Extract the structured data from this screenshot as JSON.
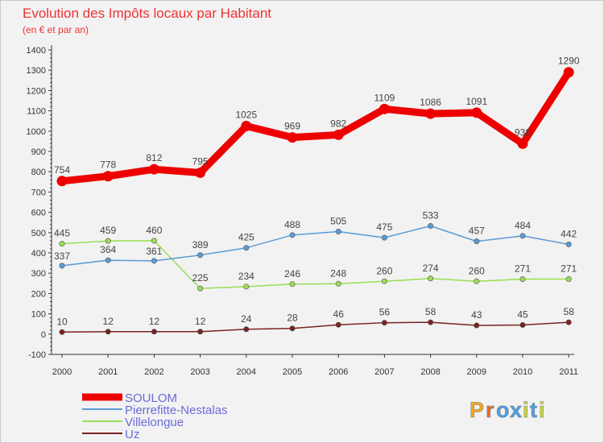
{
  "chart_data": {
    "type": "line",
    "title": "Evolution des Impôts locaux par Habitant",
    "subtitle": "(en € et par an)",
    "xlabel": "",
    "ylabel": "",
    "ylim": [
      -100,
      1400
    ],
    "yticks": [
      "1400",
      "1300",
      "1200",
      "1100",
      "1000",
      "900",
      "800",
      "700",
      "600",
      "500",
      "400",
      "300",
      "200",
      "100",
      "0",
      "-100"
    ],
    "ytick_values": [
      1400,
      1300,
      1200,
      1100,
      1000,
      900,
      800,
      700,
      600,
      500,
      400,
      300,
      200,
      100,
      0,
      -100
    ],
    "categories": [
      "2000",
      "2001",
      "2002",
      "2003",
      "2004",
      "2005",
      "2006",
      "2007",
      "2008",
      "2009",
      "2010",
      "2011"
    ],
    "grid": false,
    "legend_position": "bottom-left",
    "series": [
      {
        "name": "SOULOM",
        "color": "#ee0000",
        "values": [
          754,
          778,
          812,
          795,
          1025,
          969,
          982,
          1109,
          1086,
          1091,
          938,
          1290
        ],
        "labels": [
          "754",
          "778",
          "812",
          "795",
          "1025",
          "969",
          "982",
          "1109",
          "1086",
          "1091",
          "938",
          "1290"
        ]
      },
      {
        "name": "Pierrefitte-Nestalas",
        "color": "#5b9bd5",
        "values": [
          337,
          364,
          361,
          389,
          425,
          488,
          505,
          475,
          533,
          457,
          484,
          442
        ],
        "labels": [
          "337",
          "364",
          "361",
          "389",
          "425",
          "488",
          "505",
          "475",
          "533",
          "457",
          "484",
          "442"
        ]
      },
      {
        "name": "Villelongue",
        "color": "#99dd55",
        "values": [
          445,
          459,
          460,
          225,
          234,
          246,
          248,
          260,
          274,
          260,
          271,
          271
        ],
        "labels": [
          "445",
          "459",
          "460",
          "225",
          "234",
          "246",
          "248",
          "260",
          "274",
          "260",
          "271",
          "271"
        ]
      },
      {
        "name": "Uz",
        "color": "#7a2222",
        "values": [
          10,
          12,
          12,
          12,
          24,
          28,
          46,
          56,
          58,
          43,
          45,
          58
        ],
        "labels": [
          "10",
          "12",
          "12",
          "12",
          "24",
          "28",
          "46",
          "56",
          "58",
          "43",
          "45",
          "58"
        ]
      }
    ]
  },
  "colors": {
    "title": "#ee3333",
    "legend_text": "#6a6ad8",
    "axis": "#333333",
    "label": "#444444"
  },
  "logo": {
    "text": "Proxiti",
    "letters": [
      "P",
      "r",
      "o",
      "x",
      "i",
      "t",
      "i"
    ],
    "colors": [
      "#f5a623",
      "#e26a2c",
      "#4aa0e6",
      "#4aa0e6",
      "#c7d83c",
      "#4aa0e6",
      "#c7d83c"
    ]
  }
}
